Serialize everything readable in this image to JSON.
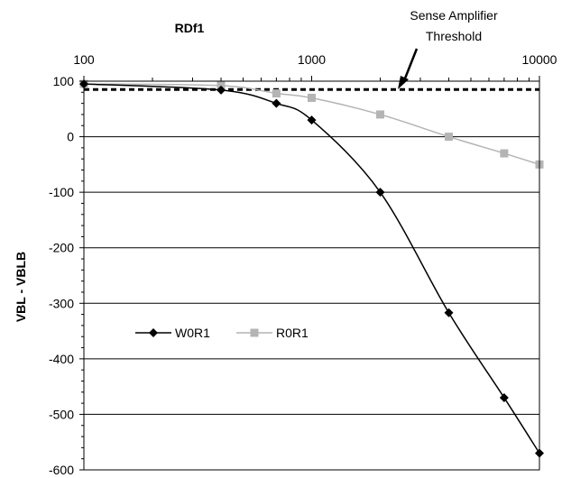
{
  "chart_data": {
    "type": "line",
    "title": "",
    "xlabel": "RDf1",
    "ylabel": "VBL - VBLB",
    "xscale": "log",
    "xlim": [
      100,
      10000
    ],
    "ylim": [
      -600,
      100
    ],
    "x_ticks": [
      "100",
      "1000",
      "10000"
    ],
    "y_ticks": [
      "100",
      "0",
      "-100",
      "-200",
      "-300",
      "-400",
      "-500",
      "-600"
    ],
    "grid": "horizontal",
    "x_axis_position": "top",
    "legend_position": "middle-left",
    "threshold": {
      "value": 85,
      "label_line1": "Sense Amplifier",
      "label_line2": "Threshold",
      "style": "dashed"
    },
    "series": [
      {
        "name": "W0R1",
        "marker": "diamond",
        "color": "#000000",
        "x": [
          100,
          400,
          700,
          1000,
          2000,
          4000,
          7000,
          10000
        ],
        "y": [
          95,
          84,
          60,
          30,
          -100,
          -317,
          -470,
          -570
        ]
      },
      {
        "name": "R0R1",
        "marker": "square",
        "color": "#b4b4b4",
        "x": [
          100,
          400,
          700,
          1000,
          2000,
          4000,
          7000,
          10000
        ],
        "y": [
          95,
          92,
          78,
          70,
          40,
          0,
          -30,
          -50
        ]
      }
    ]
  }
}
